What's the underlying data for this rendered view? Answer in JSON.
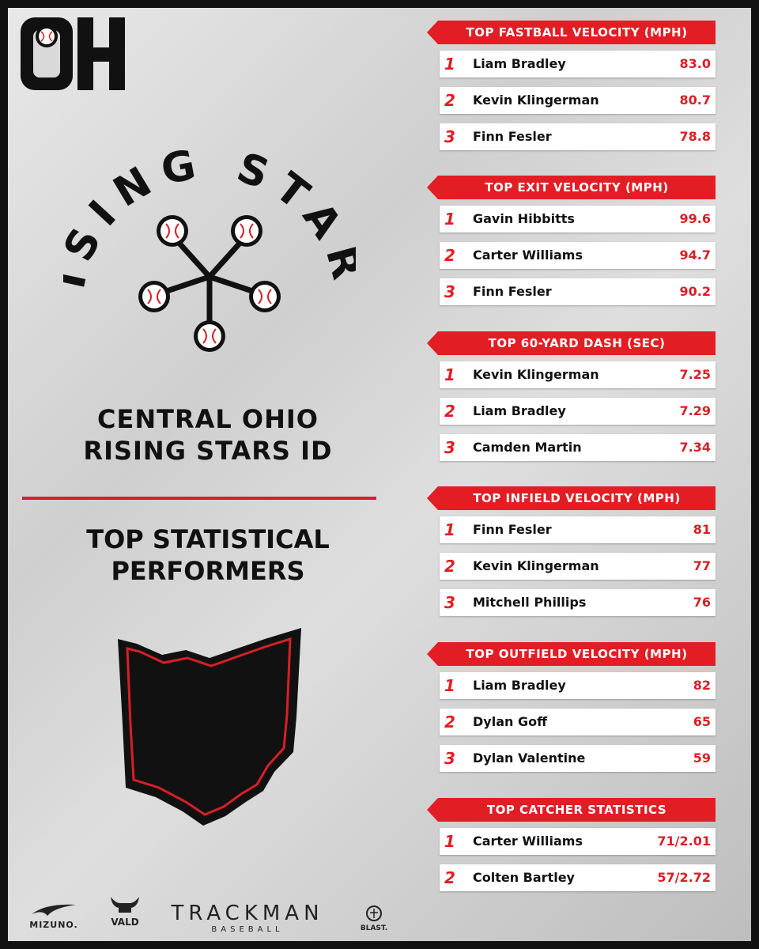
{
  "brand": {
    "logo_text": "OH"
  },
  "event": {
    "logo_text": "RISING STARS",
    "title_line1": "CENTRAL OHIO",
    "title_line2": "RISING STARS ID"
  },
  "section": {
    "line1": "TOP STATISTICAL",
    "line2": "PERFORMERS"
  },
  "colors": {
    "accent": "#e31d24",
    "dark": "#111111",
    "background": "#d9d9d9"
  },
  "boards": [
    {
      "title": "TOP FASTBALL VELOCITY (MPH)",
      "rows": [
        {
          "rank": "1",
          "name": "Liam Bradley",
          "value": "83.0"
        },
        {
          "rank": "2",
          "name": "Kevin Klingerman",
          "value": "80.7"
        },
        {
          "rank": "3",
          "name": "Finn Fesler",
          "value": "78.8"
        }
      ]
    },
    {
      "title": "TOP EXIT VELOCITY (MPH)",
      "rows": [
        {
          "rank": "1",
          "name": "Gavin Hibbitts",
          "value": "99.6"
        },
        {
          "rank": "2",
          "name": "Carter Williams",
          "value": "94.7"
        },
        {
          "rank": "3",
          "name": "Finn Fesler",
          "value": "90.2"
        }
      ]
    },
    {
      "title": "TOP 60-YARD DASH (SEC)",
      "rows": [
        {
          "rank": "1",
          "name": "Kevin Klingerman",
          "value": "7.25"
        },
        {
          "rank": "2",
          "name": "Liam Bradley",
          "value": "7.29"
        },
        {
          "rank": "3",
          "name": "Camden Martin",
          "value": "7.34"
        }
      ]
    },
    {
      "title": "TOP INFIELD VELOCITY (MPH)",
      "rows": [
        {
          "rank": "1",
          "name": "Finn Fesler",
          "value": "81"
        },
        {
          "rank": "2",
          "name": "Kevin Klingerman",
          "value": "77"
        },
        {
          "rank": "3",
          "name": "Mitchell Phillips",
          "value": "76"
        }
      ]
    },
    {
      "title": "TOP OUTFIELD VELOCITY (MPH)",
      "rows": [
        {
          "rank": "1",
          "name": "Liam Bradley",
          "value": "82"
        },
        {
          "rank": "2",
          "name": "Dylan Goff",
          "value": "65"
        },
        {
          "rank": "3",
          "name": "Dylan Valentine",
          "value": "59"
        }
      ]
    },
    {
      "title": "TOP CATCHER STATISTICS",
      "rows": [
        {
          "rank": "1",
          "name": "Carter Williams",
          "value": "71/2.01"
        },
        {
          "rank": "2",
          "name": "Colten Bartley",
          "value": "57/2.72"
        }
      ]
    }
  ],
  "sponsors": {
    "mizuno": "MIZUNO.",
    "vald": "VALD",
    "trackman": "TRACKMAN",
    "trackman_sub": "BASEBALL",
    "blast": "BLAST."
  }
}
